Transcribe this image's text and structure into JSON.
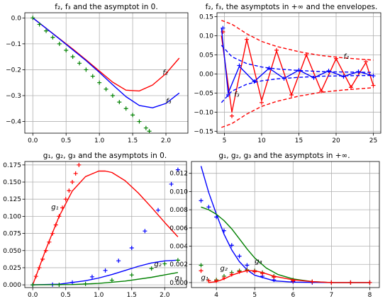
{
  "chart_data": [
    {
      "type": "line",
      "title": "f₂, f₃ and the asymptot in 0.",
      "xlim": [
        -0.12,
        2.33
      ],
      "ylim": [
        -0.445,
        0.02
      ],
      "xticks": [
        0.0,
        0.5,
        1.0,
        1.5,
        2.0
      ],
      "xtick_labels": [
        "0.0",
        "0.5",
        "1.0",
        "1.5",
        "2.0"
      ],
      "yticks": [
        0.0,
        -0.1,
        -0.2,
        -0.3,
        -0.4
      ],
      "ytick_labels": [
        "0.0",
        "−0.1",
        "−0.2",
        "−0.3",
        "−0.4"
      ],
      "grid": true,
      "annotations": [
        {
          "text": "f₂",
          "x": 1.95,
          "y": -0.22
        },
        {
          "text": "f₃",
          "x": 2.0,
          "y": -0.33
        }
      ],
      "series": [
        {
          "color": "#ff0000",
          "style": "line",
          "x": [
            0,
            0.2,
            0.4,
            0.6,
            0.8,
            1.0,
            1.2,
            1.4,
            1.6,
            1.8,
            2.0,
            2.2
          ],
          "y": [
            0,
            -0.04,
            -0.08,
            -0.12,
            -0.162,
            -0.205,
            -0.248,
            -0.279,
            -0.282,
            -0.259,
            -0.215,
            -0.155
          ]
        },
        {
          "color": "#0000ff",
          "style": "line",
          "x": [
            0,
            0.2,
            0.4,
            0.6,
            0.8,
            1.0,
            1.2,
            1.4,
            1.6,
            1.8,
            2.0,
            2.2
          ],
          "y": [
            0,
            -0.04,
            -0.081,
            -0.123,
            -0.165,
            -0.21,
            -0.258,
            -0.304,
            -0.338,
            -0.347,
            -0.33,
            -0.29
          ]
        },
        {
          "color": "#008000",
          "style": "plus",
          "x": [
            0,
            0.1,
            0.2,
            0.3,
            0.4,
            0.5,
            0.6,
            0.7,
            0.8,
            0.9,
            1.0,
            1.1,
            1.2,
            1.3,
            1.4,
            1.5,
            1.6,
            1.7,
            1.75
          ],
          "y": [
            0,
            -0.025,
            -0.05,
            -0.075,
            -0.1,
            -0.125,
            -0.15,
            -0.175,
            -0.2,
            -0.225,
            -0.25,
            -0.275,
            -0.3,
            -0.325,
            -0.35,
            -0.375,
            -0.4,
            -0.425,
            -0.4375
          ]
        }
      ]
    },
    {
      "type": "line",
      "title": "f₂, f₃, the asymptots in +∞ and the envelopes.",
      "xlim": [
        4,
        26
      ],
      "ylim": [
        -0.155,
        0.16
      ],
      "xticks": [
        5,
        10,
        15,
        20,
        25
      ],
      "xtick_labels": [
        "5",
        "10",
        "15",
        "20",
        "25"
      ],
      "yticks": [
        0.15,
        0.1,
        0.05,
        0.0,
        -0.05,
        -0.1,
        -0.15
      ],
      "ytick_labels": [
        "0.15",
        "0.10",
        "0.05",
        "0.00",
        "−0.05",
        "−0.10",
        "−0.15"
      ],
      "grid": true,
      "annotations": [
        {
          "text": "f₂",
          "x": 21,
          "y": 0.04
        },
        {
          "text": "f₃",
          "x": 6.3,
          "y": -0.06
        }
      ],
      "series": [
        {
          "color": "#ff0000",
          "style": "line",
          "x": [
            4.6,
            6,
            8,
            10,
            12,
            14,
            16,
            18,
            20,
            22,
            24,
            25
          ],
          "y": [
            0.1,
            -0.1,
            0.09,
            -0.07,
            0.06,
            -0.055,
            0.05,
            -0.045,
            0.04,
            -0.035,
            0.03,
            -0.03
          ]
        },
        {
          "color": "#ff0000",
          "style": "plus",
          "x": [
            4.8,
            6,
            8,
            10,
            12,
            14,
            16,
            18,
            20,
            22,
            24,
            25
          ],
          "y": [
            0.11,
            -0.11,
            0.09,
            -0.075,
            0.062,
            -0.055,
            0.05,
            -0.045,
            0.04,
            -0.035,
            0.032,
            -0.03
          ]
        },
        {
          "color": "#ff0000",
          "style": "dashed",
          "x": [
            4.6,
            6,
            8,
            10,
            12,
            15,
            18,
            21,
            25
          ],
          "y": [
            0.14,
            0.13,
            0.105,
            0.085,
            0.072,
            0.058,
            0.048,
            0.042,
            0.036
          ]
        },
        {
          "color": "#ff0000",
          "style": "dashed",
          "x": [
            4.6,
            6,
            8,
            10,
            12,
            15,
            18,
            21,
            25
          ],
          "y": [
            -0.14,
            -0.13,
            -0.105,
            -0.085,
            -0.072,
            -0.058,
            -0.048,
            -0.042,
            -0.036
          ]
        },
        {
          "color": "#0000ff",
          "style": "line",
          "x": [
            4.6,
            5.5,
            7,
            9,
            11,
            13,
            15,
            17,
            19,
            21,
            23,
            25
          ],
          "y": [
            0.12,
            -0.05,
            0.02,
            -0.02,
            0.015,
            -0.012,
            0.01,
            -0.01,
            0.008,
            -0.007,
            0.006,
            -0.005
          ]
        },
        {
          "color": "#0000ff",
          "style": "plus",
          "x": [
            4.8,
            5.5,
            7,
            9,
            11,
            13,
            15,
            17,
            19,
            21,
            23,
            25
          ],
          "y": [
            0.12,
            -0.055,
            0.022,
            -0.02,
            0.015,
            -0.012,
            0.01,
            -0.01,
            0.008,
            -0.007,
            0.006,
            -0.005
          ]
        },
        {
          "color": "#0000ff",
          "style": "dashed",
          "x": [
            4.6,
            6,
            8,
            10,
            12,
            15,
            18,
            21,
            25
          ],
          "y": [
            0.075,
            0.045,
            0.027,
            0.018,
            0.013,
            0.009,
            0.006,
            0.005,
            0.004
          ]
        },
        {
          "color": "#0000ff",
          "style": "dashed",
          "x": [
            4.6,
            6,
            8,
            10,
            12,
            15,
            18,
            21,
            25
          ],
          "y": [
            -0.075,
            -0.045,
            -0.027,
            -0.018,
            -0.013,
            -0.009,
            -0.006,
            -0.005,
            -0.004
          ]
        }
      ]
    },
    {
      "type": "line",
      "title": "g₁, g₂, g₃ and the asymptots in 0.",
      "xlim": [
        -0.12,
        2.33
      ],
      "ylim": [
        -0.004,
        0.18
      ],
      "xticks": [
        0.0,
        0.5,
        1.0,
        1.5,
        2.0
      ],
      "xtick_labels": [
        "0.0",
        "0.5",
        "1.0",
        "1.5",
        "2.0"
      ],
      "yticks": [
        0.0,
        0.025,
        0.05,
        0.075,
        0.1,
        0.125,
        0.15,
        0.175
      ],
      "ytick_labels": [
        "0.000",
        "0.025",
        "0.050",
        "0.075",
        "0.100",
        "0.125",
        "0.150",
        "0.175"
      ],
      "grid": true,
      "annotations": [
        {
          "text": "g₁",
          "x": 0.28,
          "y": 0.11
        },
        {
          "text": "g₂",
          "x": 1.84,
          "y": 0.027
        },
        {
          "text": "g₃",
          "x": 2.15,
          "y": 0.007
        }
      ],
      "series": [
        {
          "color": "#ff0000",
          "style": "line",
          "x": [
            0,
            0.2,
            0.4,
            0.6,
            0.8,
            1.0,
            1.1,
            1.2,
            1.4,
            1.6,
            1.8,
            2.0,
            2.2
          ],
          "y": [
            0,
            0.052,
            0.1,
            0.137,
            0.158,
            0.166,
            0.166,
            0.164,
            0.152,
            0.134,
            0.113,
            0.091,
            0.07
          ]
        },
        {
          "color": "#ff0000",
          "style": "plus",
          "x": [
            0,
            0.05,
            0.1,
            0.15,
            0.2,
            0.25,
            0.3,
            0.35,
            0.4,
            0.45,
            0.5,
            0.55,
            0.6,
            0.65,
            0.7
          ],
          "y": [
            0,
            0.0125,
            0.025,
            0.0375,
            0.05,
            0.0625,
            0.075,
            0.0875,
            0.1,
            0.1125,
            0.125,
            0.1375,
            0.15,
            0.1625,
            0.175
          ]
        },
        {
          "color": "#0000ff",
          "style": "line",
          "x": [
            0,
            0.4,
            0.8,
            1.0,
            1.2,
            1.4,
            1.6,
            1.8,
            2.0,
            2.2
          ],
          "y": [
            0,
            0.001,
            0.006,
            0.01,
            0.015,
            0.021,
            0.027,
            0.032,
            0.035,
            0.036
          ]
        },
        {
          "color": "#0000ff",
          "style": "plus",
          "x": [
            0,
            0.3,
            0.6,
            0.9,
            1.1,
            1.3,
            1.5,
            1.7,
            1.9,
            2.1,
            2.2
          ],
          "y": [
            0,
            0.0004,
            0.0035,
            0.0117,
            0.021,
            0.0351,
            0.0539,
            0.0785,
            0.109,
            0.147,
            0.168
          ]
        },
        {
          "color": "#008000",
          "style": "line",
          "x": [
            0,
            0.6,
            1.0,
            1.4,
            1.8,
            2.0,
            2.2
          ],
          "y": [
            0,
            0.0004,
            0.0021,
            0.0055,
            0.011,
            0.0145,
            0.018
          ]
        },
        {
          "color": "#008000",
          "style": "plus",
          "x": [
            0,
            0.4,
            0.8,
            1.2,
            1.5,
            1.8,
            2.0,
            2.2
          ],
          "y": [
            0,
            0.0001,
            0.0014,
            0.0068,
            0.0144,
            0.0238,
            0.0307,
            0.0359
          ]
        }
      ]
    },
    {
      "type": "line",
      "title": "g₁, g₂, g₃ and the asymptots in +∞.",
      "xlim": [
        3.35,
        8.25
      ],
      "ylim": [
        -0.00055,
        0.0133
      ],
      "xticks": [
        4,
        5,
        6,
        7,
        8
      ],
      "xtick_labels": [
        "4",
        "5",
        "6",
        "7",
        "8"
      ],
      "yticks": [
        0.0,
        0.002,
        0.004,
        0.006,
        0.008,
        0.01,
        0.012
      ],
      "ytick_labels": [
        "0.000",
        "0.002",
        "0.004",
        "0.006",
        "0.008",
        "0.010",
        "0.012"
      ],
      "grid": true,
      "annotations": [
        {
          "text": "g₁",
          "x": 3.6,
          "y": 0.0003
        },
        {
          "text": "g₂",
          "x": 4.1,
          "y": 0.0013
        },
        {
          "text": "g₃",
          "x": 5.0,
          "y": 0.0021
        }
      ],
      "series": [
        {
          "color": "#0000ff",
          "style": "line",
          "x": [
            3.6,
            3.8,
            4.0,
            4.2,
            4.4,
            4.6,
            4.8,
            5.0,
            5.5,
            6.0,
            7.0,
            8.0
          ],
          "y": [
            0.0128,
            0.0099,
            0.0075,
            0.0053,
            0.0036,
            0.0023,
            0.0014,
            0.0008,
            0.0002,
            5e-05,
            0,
            0
          ]
        },
        {
          "color": "#0000ff",
          "style": "plus",
          "x": [
            3.6,
            3.8,
            4.0,
            4.2,
            4.4,
            4.6,
            4.8,
            5.0,
            5.2,
            5.5,
            6.0,
            6.5,
            7.0,
            7.5,
            8.0
          ],
          "y": [
            0.009,
            0.0083,
            0.0072,
            0.0057,
            0.0041,
            0.0029,
            0.0019,
            0.0012,
            0.0007,
            0.0003,
            0.0001,
            0,
            0,
            0,
            0
          ]
        },
        {
          "color": "#008000",
          "style": "line",
          "x": [
            3.6,
            3.8,
            4.0,
            4.2,
            4.4,
            4.6,
            4.8,
            5.0,
            5.3,
            5.6,
            6.0,
            6.5,
            7.0,
            8.0
          ],
          "y": [
            0.0083,
            0.008,
            0.0075,
            0.0068,
            0.0059,
            0.0048,
            0.0037,
            0.0027,
            0.0016,
            0.0009,
            0.0004,
            0.0001,
            0,
            0
          ]
        },
        {
          "color": "#008000",
          "style": "plus",
          "x": [
            3.6,
            3.8,
            4.0,
            4.2,
            4.4,
            4.6,
            4.8,
            5.0,
            5.2,
            5.5,
            6.0,
            6.5,
            7.0,
            7.5,
            8.0
          ],
          "y": [
            0.0019,
            0.0002,
            0.0003,
            0.0007,
            0.0011,
            0.0013,
            0.0014,
            0.0013,
            0.0011,
            0.0007,
            0.0003,
            0.0001,
            0,
            0,
            0
          ]
        },
        {
          "color": "#ff0000",
          "style": "line",
          "x": [
            3.8,
            4.0,
            4.2,
            4.4,
            4.6,
            4.8,
            5.0,
            5.2,
            5.5,
            6.0,
            6.5,
            7.0,
            8.0
          ],
          "y": [
            0,
            0.0001,
            0.0004,
            0.0008,
            0.0011,
            0.0013,
            0.0013,
            0.0011,
            0.0007,
            0.0003,
            0.0001,
            0,
            0
          ]
        },
        {
          "color": "#ff0000",
          "style": "plus",
          "x": [
            3.6,
            3.8,
            4.0,
            4.2,
            4.4,
            4.6,
            4.8,
            5.0,
            5.2,
            5.5,
            6.0,
            6.5,
            7.0,
            7.5,
            8.0
          ],
          "y": [
            0.0013,
            0.0002,
            0.0002,
            0.0005,
            0.0009,
            0.0012,
            0.0013,
            0.0012,
            0.001,
            0.0006,
            0.0002,
            0.0001,
            0,
            0,
            0
          ]
        }
      ]
    }
  ]
}
